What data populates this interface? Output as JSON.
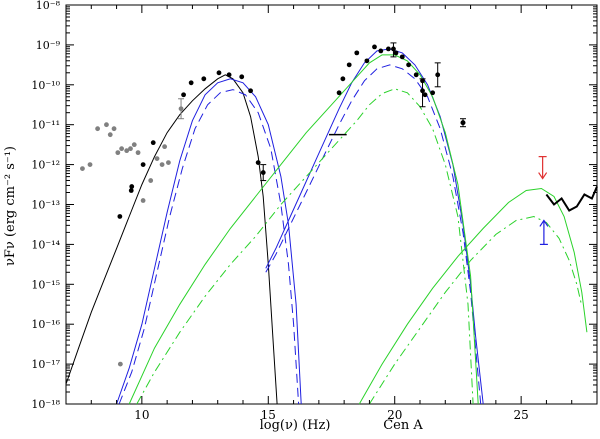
{
  "chart_data": {
    "type": "scatter",
    "xlabel": "log(ν)  (Hz)",
    "ylabel": "νFν  (erg cm⁻² s⁻¹)",
    "annotation": "Cen A",
    "xlim": [
      7,
      28
    ],
    "ylim": [
      -18,
      -8
    ],
    "y_scale": "log",
    "x_ticks": [
      10,
      15,
      20,
      25
    ],
    "y_ticks": [
      -18,
      -17,
      -16,
      -15,
      -14,
      -13,
      -12,
      -11,
      -10,
      -9,
      -8
    ],
    "y_tick_labels": [
      "10⁻¹⁸",
      "10⁻¹⁷",
      "10⁻¹⁶",
      "10⁻¹⁵",
      "10⁻¹⁴",
      "10⁻¹³",
      "10⁻¹²",
      "10⁻¹¹",
      "10⁻¹⁰",
      "10⁻⁹",
      "10⁻⁸"
    ],
    "colors": {
      "black": "#000000",
      "grey": "#808080",
      "blue": "#1f1fe0",
      "green": "#2ad22a",
      "red": "#e03030"
    },
    "series": [
      {
        "kind": "line",
        "style": "solid",
        "color": "black",
        "x": [
          7,
          7.5,
          8,
          8.5,
          9,
          9.5,
          10,
          10.5,
          11,
          11.5,
          12,
          12.5,
          13,
          13.3,
          13.6,
          14,
          14.3,
          14.6,
          14.8,
          15,
          15.2,
          15.35
        ],
        "y": [
          -17.5,
          -16.6,
          -15.7,
          -14.9,
          -14.1,
          -13.3,
          -12.5,
          -11.8,
          -11.2,
          -10.75,
          -10.4,
          -10.1,
          -9.85,
          -9.75,
          -9.85,
          -10.2,
          -10.8,
          -11.8,
          -12.8,
          -14.5,
          -16.5,
          -18
        ]
      },
      {
        "kind": "line",
        "style": "solid",
        "color": "blue",
        "x": [
          9,
          9.5,
          10,
          10.5,
          11,
          11.5,
          12,
          12.5,
          13,
          13.5,
          14,
          14.5,
          15,
          15.5,
          15.8,
          16.1,
          16.3
        ],
        "y": [
          -18,
          -17.1,
          -16.0,
          -14.6,
          -13.2,
          -11.9,
          -10.9,
          -10.25,
          -9.95,
          -9.85,
          -9.95,
          -10.3,
          -11.0,
          -12.3,
          -13.5,
          -15.5,
          -18
        ]
      },
      {
        "kind": "line",
        "style": "dashed",
        "color": "blue",
        "x": [
          9.1,
          9.6,
          10.1,
          10.6,
          11.1,
          11.6,
          12.1,
          12.6,
          13.1,
          13.6,
          14.1,
          14.6,
          15.1,
          15.5,
          15.8,
          16.0,
          16.2
        ],
        "y": [
          -18,
          -17.2,
          -16.1,
          -14.7,
          -13.3,
          -12.1,
          -11.1,
          -10.5,
          -10.2,
          -10.12,
          -10.25,
          -10.7,
          -11.6,
          -13.0,
          -14.5,
          -16.0,
          -18
        ]
      },
      {
        "kind": "line",
        "style": "solid",
        "color": "blue",
        "x": [
          14.9,
          15.3,
          15.8,
          16.3,
          16.8,
          17.3,
          17.8,
          18.3,
          18.8,
          19.3,
          19.8,
          20.3,
          20.8,
          21.3,
          21.8,
          22.3,
          22.7,
          23.0,
          23.2,
          23.5
        ],
        "y": [
          -14.6,
          -14.1,
          -13.4,
          -12.7,
          -12.0,
          -11.3,
          -10.6,
          -9.95,
          -9.45,
          -9.15,
          -9.1,
          -9.2,
          -9.5,
          -10.0,
          -10.8,
          -12.0,
          -13.5,
          -15.0,
          -16.3,
          -18
        ]
      },
      {
        "kind": "line",
        "style": "dashed",
        "color": "blue",
        "x": [
          14.9,
          15.3,
          15.8,
          16.3,
          16.8,
          17.3,
          17.8,
          18.3,
          18.8,
          19.3,
          19.8,
          20.3,
          20.8,
          21.3,
          21.8,
          22.3,
          22.7,
          23.0,
          23.2,
          23.4
        ],
        "y": [
          -14.7,
          -14.25,
          -13.6,
          -12.95,
          -12.3,
          -11.65,
          -11.0,
          -10.4,
          -9.9,
          -9.6,
          -9.5,
          -9.6,
          -9.85,
          -10.3,
          -11.1,
          -12.3,
          -13.7,
          -15.2,
          -16.6,
          -18
        ]
      },
      {
        "kind": "line",
        "style": "solid",
        "color": "green",
        "x": [
          9.5,
          10.5,
          11.5,
          12.5,
          13.5,
          14.5,
          15.5,
          16.5,
          17.5,
          18.5,
          19.0,
          19.5,
          20.0,
          20.5,
          21.0,
          21.5,
          22.0,
          22.5,
          23.0,
          23.3
        ],
        "y": [
          -18,
          -16.6,
          -15.5,
          -14.5,
          -13.6,
          -12.8,
          -12.0,
          -11.2,
          -10.5,
          -9.8,
          -9.45,
          -9.25,
          -9.25,
          -9.4,
          -9.75,
          -10.3,
          -11.2,
          -12.5,
          -14.8,
          -18
        ]
      },
      {
        "kind": "line",
        "style": "dashdot",
        "color": "green",
        "x": [
          9.8,
          10.5,
          11.5,
          12.5,
          13.5,
          14.5,
          15.5,
          16.5,
          17.5,
          18.5,
          19.0,
          19.5,
          20.0,
          20.5,
          21.0,
          21.5,
          22.0,
          22.5,
          22.9,
          23.1
        ],
        "y": [
          -18,
          -17.2,
          -16.2,
          -15.3,
          -14.5,
          -13.8,
          -13.0,
          -12.3,
          -11.6,
          -10.9,
          -10.5,
          -10.22,
          -10.1,
          -10.2,
          -10.55,
          -11.1,
          -12.0,
          -13.3,
          -15.5,
          -18
        ]
      },
      {
        "kind": "line",
        "style": "solid",
        "color": "green",
        "x": [
          18.6,
          19.5,
          20.5,
          21.5,
          22.5,
          23.5,
          24.5,
          25.2,
          25.8,
          26.3,
          26.7,
          27.1,
          27.4,
          27.6
        ],
        "y": [
          -18,
          -17.0,
          -16.0,
          -15.1,
          -14.3,
          -13.6,
          -12.95,
          -12.65,
          -12.6,
          -12.8,
          -13.3,
          -14.2,
          -15.2,
          -16.2
        ]
      },
      {
        "kind": "line",
        "style": "dashdot",
        "color": "green",
        "x": [
          19.0,
          20.0,
          21.0,
          22.0,
          23.0,
          24.0,
          24.8,
          25.5,
          26.0,
          26.5,
          26.9,
          27.2,
          27.4
        ],
        "y": [
          -18,
          -17.0,
          -16.1,
          -15.2,
          -14.4,
          -13.75,
          -13.4,
          -13.3,
          -13.45,
          -13.85,
          -14.4,
          -15.0,
          -15.55
        ]
      },
      {
        "kind": "line",
        "style": "solid",
        "color": "black",
        "width": 2,
        "x": [
          26.0,
          26.3,
          26.6,
          26.9,
          27.2,
          27.5,
          27.8,
          28.0
        ],
        "y": [
          -12.75,
          -13.0,
          -12.85,
          -13.15,
          -13.05,
          -12.75,
          -12.85,
          -12.55
        ]
      },
      {
        "kind": "points",
        "marker": "filled-circle",
        "color": "black",
        "x": [
          9.13,
          9.58,
          9.6,
          10.05,
          10.45,
          11.65,
          11.95,
          12.45,
          13.05,
          13.45,
          13.95,
          14.3,
          14.6,
          17.8,
          17.95,
          18.2,
          18.5,
          18.9,
          19.2,
          19.45,
          19.75,
          20.05,
          20.3,
          20.55,
          20.85,
          21.1,
          21.2,
          21.5,
          22.7
        ],
        "y": [
          -13.3,
          -12.65,
          -12.55,
          -12.0,
          -11.45,
          -10.25,
          -9.95,
          -9.85,
          -9.7,
          -9.75,
          -9.8,
          -10.15,
          -11.95,
          -10.2,
          -9.85,
          -9.5,
          -9.2,
          -9.4,
          -9.05,
          -9.15,
          -9.1,
          -9.2,
          -9.3,
          -9.5,
          -9.75,
          -9.9,
          -10.25,
          -10.2,
          -10.95
        ]
      },
      {
        "kind": "points",
        "marker": "filled-circle",
        "color": "grey",
        "x": [
          7.65,
          7.95,
          8.25,
          8.6,
          8.75,
          8.9,
          9.05,
          9.2,
          9.4,
          9.55,
          9.7,
          9.85,
          10.05,
          10.35,
          10.6,
          10.8,
          10.9,
          11.05,
          9.15
        ],
        "y": [
          -12.1,
          -12.0,
          -11.1,
          -11.0,
          -11.25,
          -11.1,
          -11.7,
          -11.6,
          -11.65,
          -11.6,
          -11.5,
          -11.7,
          -12.9,
          -12.4,
          -11.85,
          -12.0,
          -11.55,
          -11.95,
          -17.0
        ]
      },
      {
        "kind": "errorbars",
        "color": "black",
        "points": [
          {
            "x": 14.8,
            "y": -12.2,
            "lo": -12.4,
            "hi": -12.0
          },
          {
            "x": 21.1,
            "y": -10.15,
            "lo": -10.55,
            "hi": -9.85
          },
          {
            "x": 21.7,
            "y": -9.75,
            "lo": -10.05,
            "hi": -9.45
          },
          {
            "x": 22.7,
            "y": -10.95,
            "lo": -11.05,
            "hi": -10.85
          },
          {
            "x": 19.95,
            "y": -9.1,
            "lo": -9.3,
            "hi": -8.95
          }
        ]
      },
      {
        "kind": "errorbars",
        "color": "grey",
        "points": [
          {
            "x": 11.55,
            "y": -10.6,
            "lo": -10.85,
            "hi": -10.35
          }
        ]
      },
      {
        "kind": "segment",
        "color": "black",
        "x": [
          17.4,
          18.1
        ],
        "y": [
          -11.25,
          -11.25
        ]
      },
      {
        "kind": "upper-limit",
        "color": "red",
        "x": 25.85,
        "y_top": -11.8,
        "y_bottom": -12.35
      },
      {
        "kind": "lower-limit",
        "color": "blue",
        "x": 25.9,
        "y_bottom": -14.0,
        "y_top": -13.4
      }
    ]
  }
}
